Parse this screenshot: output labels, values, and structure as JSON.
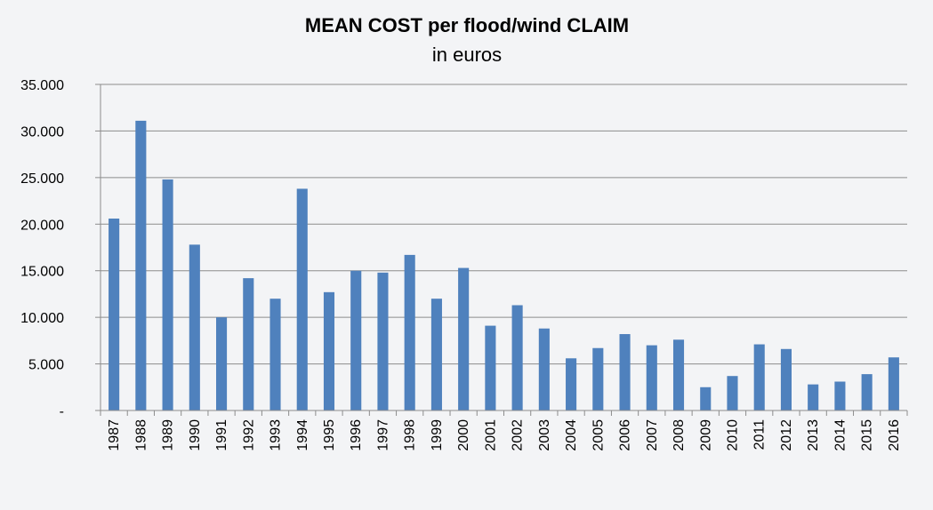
{
  "chart_data": {
    "type": "bar",
    "title": "MEAN COST per flood/wind CLAIM",
    "subtitle": "in euros",
    "xlabel": "",
    "ylabel": "",
    "ylim": [
      0,
      35000
    ],
    "y_ticks": [
      0,
      5000,
      10000,
      15000,
      20000,
      25000,
      30000,
      35000
    ],
    "y_tick_labels": [
      "-",
      "5.000",
      "10.000",
      "15.000",
      "20.000",
      "25.000",
      "30.000",
      "35.000"
    ],
    "grid": true,
    "bar_color": "#4f81bd",
    "categories": [
      "1987",
      "1988",
      "1989",
      "1990",
      "1991",
      "1992",
      "1993",
      "1994",
      "1995",
      "1996",
      "1997",
      "1998",
      "1999",
      "2000",
      "2001",
      "2002",
      "2003",
      "2004",
      "2005",
      "2006",
      "2007",
      "2008",
      "2009",
      "2010",
      "2011",
      "2012",
      "2013",
      "2014",
      "2015",
      "2016"
    ],
    "values": [
      20600,
      31100,
      24800,
      17800,
      10000,
      14200,
      12000,
      23800,
      12700,
      15000,
      14800,
      16700,
      12000,
      15300,
      9100,
      11300,
      8800,
      5600,
      6700,
      8200,
      7000,
      7600,
      2500,
      3700,
      7100,
      6600,
      2800,
      3100,
      3900,
      5700
    ]
  }
}
